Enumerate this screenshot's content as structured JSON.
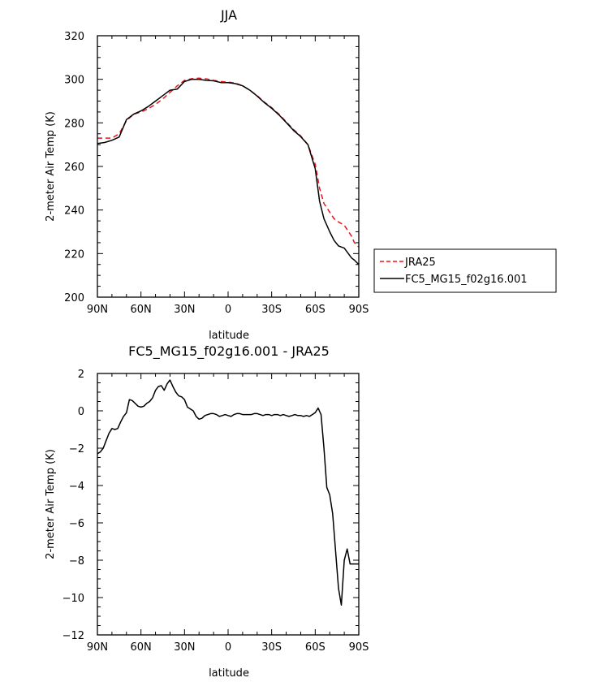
{
  "chart_data": [
    {
      "type": "line",
      "title": "JJA",
      "xlabel": "latitude",
      "ylabel": "2-meter Air Temp (K)",
      "xlim": [
        90,
        -90
      ],
      "ylim": [
        200,
        320
      ],
      "x_ticks": [
        90,
        60,
        30,
        0,
        -30,
        -60,
        -90
      ],
      "x_tick_labels": [
        "90N",
        "60N",
        "30N",
        "0",
        "30S",
        "60S",
        "90S"
      ],
      "y_ticks": [
        200,
        220,
        240,
        260,
        280,
        300,
        320
      ],
      "y_tick_labels": [
        "200",
        "220",
        "240",
        "260",
        "280",
        "300",
        "320"
      ],
      "grid": false,
      "legend_position": "outside-right",
      "series": [
        {
          "name": "JRA25",
          "color": "#e8141c",
          "dash": "dashed",
          "x": [
            90,
            85,
            80,
            75,
            70,
            65,
            60,
            55,
            50,
            45,
            40,
            35,
            30,
            25,
            20,
            15,
            10,
            5,
            0,
            -5,
            -10,
            -15,
            -20,
            -25,
            -30,
            -35,
            -40,
            -45,
            -50,
            -55,
            -60,
            -63,
            -66,
            -70,
            -73,
            -76,
            -80,
            -85,
            -87,
            -90
          ],
          "y": [
            273,
            273,
            273,
            275,
            281,
            284,
            285,
            286.5,
            288.5,
            291,
            294,
            297,
            299.5,
            300.3,
            300.5,
            300.2,
            299.5,
            299,
            298.7,
            298.3,
            297,
            295,
            292.5,
            289.5,
            287,
            284,
            280.5,
            277,
            274,
            270,
            261,
            250,
            243,
            239,
            236,
            234.5,
            233,
            228,
            225,
            223
          ]
        },
        {
          "name": "FC5_MG15_f02g16.001",
          "color": "#000000",
          "dash": "solid",
          "x": [
            90,
            85,
            80,
            75,
            70,
            65,
            60,
            55,
            50,
            45,
            40,
            35,
            30,
            25,
            20,
            15,
            10,
            5,
            0,
            -5,
            -10,
            -15,
            -20,
            -25,
            -30,
            -35,
            -40,
            -45,
            -50,
            -55,
            -60,
            -63,
            -66,
            -70,
            -73,
            -76,
            -80,
            -85,
            -87,
            -90
          ],
          "y": [
            270.5,
            271,
            272,
            273.5,
            281.5,
            284,
            285.5,
            287.5,
            290,
            292.5,
            295,
            295.5,
            299,
            300,
            300,
            299.5,
            299.3,
            298.5,
            298.5,
            298,
            297,
            295,
            292.3,
            289.3,
            286.7,
            283.7,
            280.2,
            276.6,
            273.7,
            270,
            259,
            244,
            236,
            230,
            226,
            223.5,
            222.5,
            218,
            217,
            215
          ]
        }
      ]
    },
    {
      "type": "line",
      "title": "FC5_MG15_f02g16.001 - JRA25",
      "xlabel": "latitude",
      "ylabel": "2-meter Air Temp (K)",
      "xlim": [
        90,
        -90
      ],
      "ylim": [
        -12,
        2
      ],
      "x_ticks": [
        90,
        60,
        30,
        0,
        -30,
        -60,
        -90
      ],
      "x_tick_labels": [
        "90N",
        "60N",
        "30N",
        "0",
        "30S",
        "60S",
        "90S"
      ],
      "y_ticks": [
        -12,
        -10,
        -8,
        -6,
        -4,
        -2,
        0,
        2
      ],
      "y_tick_labels": [
        "−12",
        "−10",
        "−8",
        "−6",
        "−4",
        "−2",
        "0",
        "2"
      ],
      "grid": false,
      "series": [
        {
          "color": "#000000",
          "dash": "solid",
          "x": [
            90,
            88,
            86,
            84,
            82,
            80,
            78,
            76,
            74,
            72,
            70,
            68,
            66,
            64,
            62,
            60,
            58,
            56,
            54,
            52,
            50,
            48,
            46,
            44,
            42,
            40,
            38,
            36,
            34,
            32,
            30,
            28,
            26,
            24,
            22,
            20,
            18,
            16,
            14,
            12,
            10,
            8,
            6,
            4,
            2,
            0,
            -2,
            -4,
            -6,
            -8,
            -10,
            -12,
            -14,
            -16,
            -18,
            -20,
            -22,
            -24,
            -26,
            -28,
            -30,
            -32,
            -34,
            -36,
            -38,
            -40,
            -42,
            -44,
            -46,
            -48,
            -50,
            -52,
            -54,
            -56,
            -58,
            -60,
            -62,
            -64,
            -66,
            -68,
            -70,
            -72,
            -74,
            -76,
            -78,
            -80,
            -82,
            -84,
            -86,
            -88,
            -90
          ],
          "y": [
            -2.3,
            -2.2,
            -2.0,
            -1.6,
            -1.2,
            -0.95,
            -1.0,
            -0.95,
            -0.6,
            -0.3,
            -0.1,
            0.6,
            0.55,
            0.4,
            0.25,
            0.2,
            0.25,
            0.4,
            0.5,
            0.7,
            1.1,
            1.3,
            1.35,
            1.1,
            1.45,
            1.65,
            1.3,
            1.0,
            0.8,
            0.75,
            0.6,
            0.2,
            0.1,
            0.0,
            -0.3,
            -0.45,
            -0.4,
            -0.25,
            -0.2,
            -0.15,
            -0.15,
            -0.2,
            -0.3,
            -0.25,
            -0.2,
            -0.25,
            -0.3,
            -0.2,
            -0.15,
            -0.15,
            -0.2,
            -0.2,
            -0.2,
            -0.2,
            -0.15,
            -0.15,
            -0.2,
            -0.25,
            -0.2,
            -0.2,
            -0.25,
            -0.2,
            -0.2,
            -0.25,
            -0.2,
            -0.25,
            -0.3,
            -0.25,
            -0.2,
            -0.25,
            -0.25,
            -0.3,
            -0.25,
            -0.3,
            -0.2,
            -0.1,
            0.15,
            -0.2,
            -2.0,
            -4.1,
            -4.5,
            -5.5,
            -7.5,
            -9.5,
            -10.4,
            -8.0,
            -7.4,
            -8.2,
            -8.2,
            -8.2,
            -8.2
          ]
        }
      ]
    }
  ]
}
